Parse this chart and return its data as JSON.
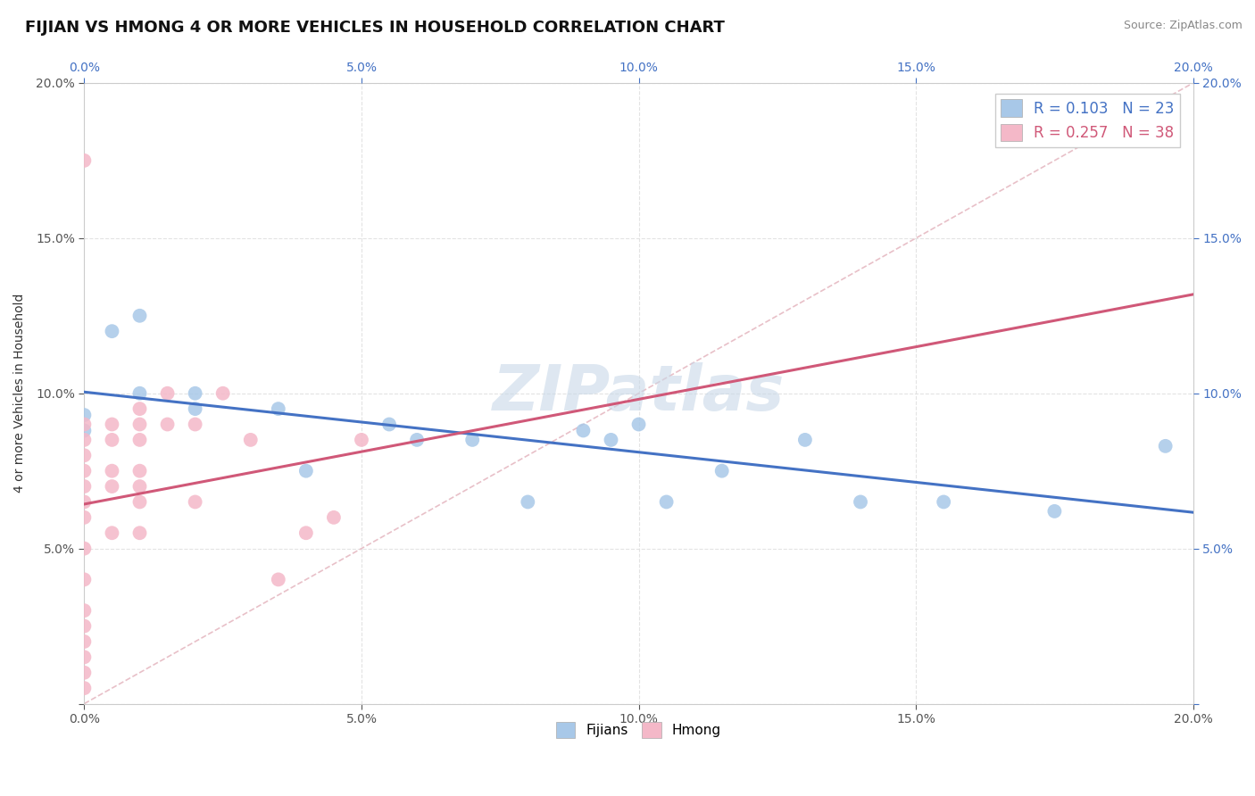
{
  "title": "FIJIAN VS HMONG 4 OR MORE VEHICLES IN HOUSEHOLD CORRELATION CHART",
  "source": "Source: ZipAtlas.com",
  "ylabel": "4 or more Vehicles in Household",
  "xlim": [
    0.0,
    0.2
  ],
  "ylim": [
    0.0,
    0.2
  ],
  "xtick_vals": [
    0.0,
    0.05,
    0.1,
    0.15,
    0.2
  ],
  "ytick_vals": [
    0.0,
    0.05,
    0.1,
    0.15,
    0.2
  ],
  "fijian_r": 0.103,
  "fijian_n": 23,
  "hmong_r": 0.257,
  "hmong_n": 38,
  "fijian_color": "#a8c8e8",
  "hmong_color": "#f4b8c8",
  "fijian_line_color": "#4472c4",
  "hmong_line_color": "#d05878",
  "diagonal_color": "#e8c0c8",
  "background_color": "#ffffff",
  "grid_color": "#e0e0e0",
  "title_fontsize": 13,
  "axis_label_fontsize": 10,
  "legend_fontsize": 12,
  "watermark_text": "ZIPatlas",
  "watermark_color": "#c8d8e8",
  "fijian_x": [
    0.0,
    0.0,
    0.005,
    0.01,
    0.01,
    0.02,
    0.02,
    0.035,
    0.04,
    0.055,
    0.06,
    0.07,
    0.08,
    0.09,
    0.095,
    0.1,
    0.105,
    0.115,
    0.13,
    0.14,
    0.155,
    0.175,
    0.195
  ],
  "fijian_y": [
    0.093,
    0.088,
    0.12,
    0.125,
    0.1,
    0.1,
    0.095,
    0.095,
    0.075,
    0.09,
    0.085,
    0.085,
    0.065,
    0.088,
    0.085,
    0.09,
    0.065,
    0.075,
    0.085,
    0.065,
    0.065,
    0.062,
    0.083
  ],
  "hmong_x": [
    0.0,
    0.0,
    0.0,
    0.0,
    0.0,
    0.0,
    0.0,
    0.0,
    0.0,
    0.0,
    0.0,
    0.0,
    0.0,
    0.0,
    0.0,
    0.0,
    0.005,
    0.005,
    0.005,
    0.005,
    0.005,
    0.01,
    0.01,
    0.01,
    0.01,
    0.01,
    0.01,
    0.01,
    0.015,
    0.015,
    0.02,
    0.02,
    0.025,
    0.03,
    0.035,
    0.04,
    0.045,
    0.05
  ],
  "hmong_y": [
    0.005,
    0.01,
    0.015,
    0.02,
    0.025,
    0.03,
    0.04,
    0.05,
    0.06,
    0.065,
    0.07,
    0.075,
    0.08,
    0.085,
    0.09,
    0.175,
    0.055,
    0.07,
    0.075,
    0.085,
    0.09,
    0.055,
    0.065,
    0.07,
    0.075,
    0.085,
    0.09,
    0.095,
    0.09,
    0.1,
    0.065,
    0.09,
    0.1,
    0.085,
    0.04,
    0.055,
    0.06,
    0.085
  ]
}
